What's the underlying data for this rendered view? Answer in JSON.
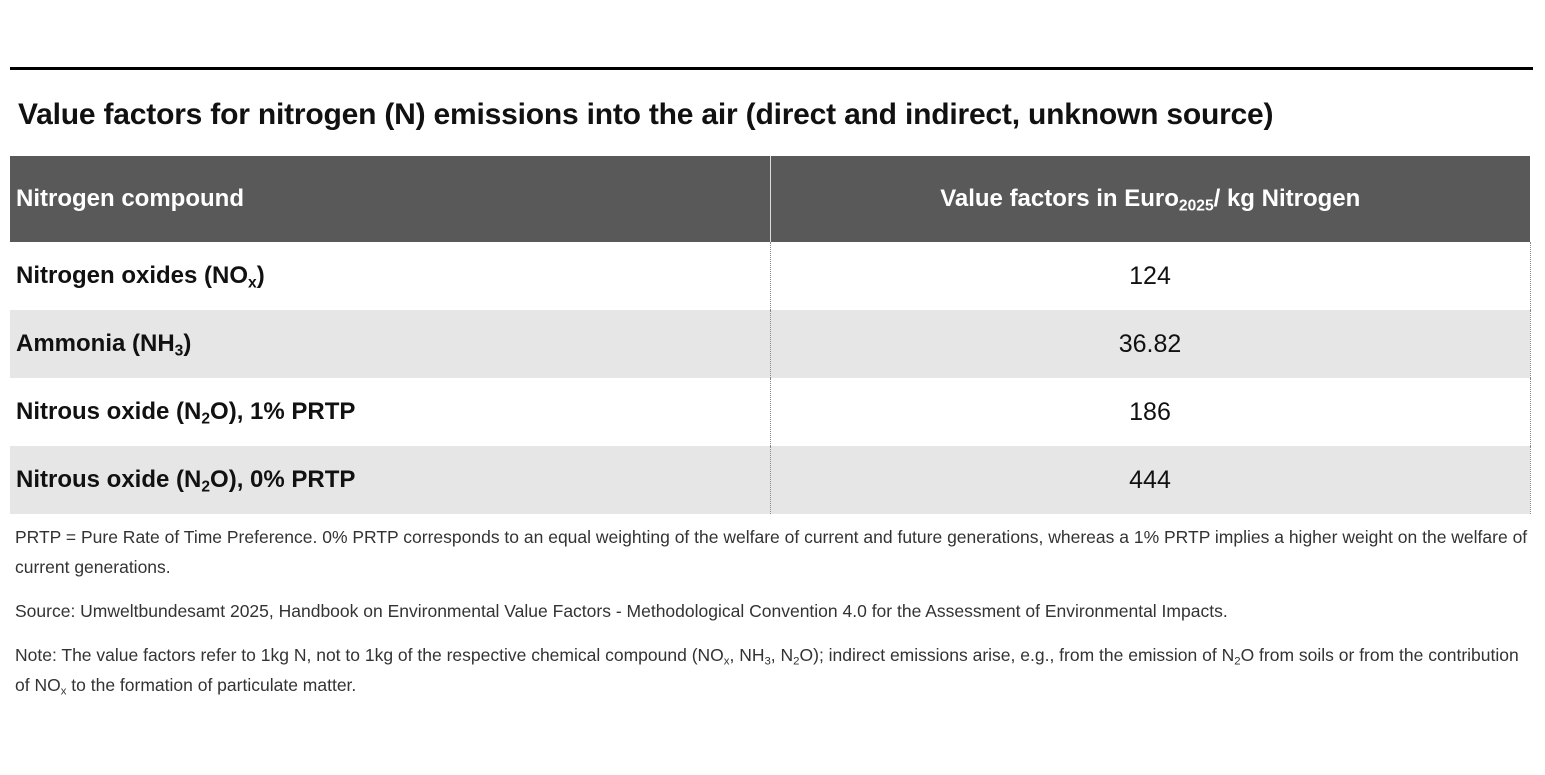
{
  "title": "Value factors for nitrogen (N) emissions into the air (direct and indirect, unknown source)",
  "table": {
    "header": [
      [
        "Nitrogen compound"
      ],
      [
        "Value factors in Euro",
        "2025",
        "/ kg Nitrogen"
      ]
    ],
    "rows": [
      [
        [
          "Nitrogen oxides (NO",
          "x",
          ")"
        ],
        124
      ],
      [
        [
          "Ammonia (NH",
          "3",
          ")"
        ],
        36.82
      ],
      [
        [
          "Nitrous oxide (N",
          "2",
          "O), 1% PRTP"
        ],
        186
      ],
      [
        [
          "Nitrous oxide (N",
          "2",
          "O), 0% PRTP"
        ],
        444
      ]
    ]
  },
  "notes": [
    [
      "PRTP = Pure Rate of Time Preference. 0% PRTP corresponds to an equal weighting of the welfare of current and future generations, whereas a 1% PRTP implies a higher weight on the welfare of current generations."
    ],
    [
      "Source: Umweltbundesamt 2025, Handbook on Environmental Value Factors - Methodological Convention 4.0 for the Assessment of Environmental Impacts."
    ],
    [
      "Note: The value factors refer to 1kg N, not to 1kg of the respective chemical compound (NO",
      "x",
      ", NH",
      "3",
      ", N",
      "2",
      "O); indirect emissions arise, e.g., from the emission of N",
      "2",
      "O from soils or from the contribution of NO",
      "x",
      " to the formation of particulate matter."
    ]
  ]
}
